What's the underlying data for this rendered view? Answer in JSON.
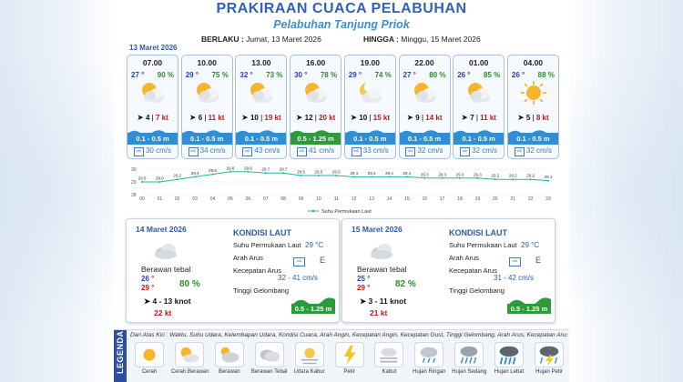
{
  "header": {
    "title": "PRAKIRAAN CUACA PELABUHAN",
    "subtitle": "Pelabuhan Tanjung Priok",
    "berlaku_label": "BERLAKU :",
    "berlaku_value": "Jumat, 13 Maret 2026",
    "hingga_label": "HINGGA :",
    "hingga_value": "Minggu, 15 Maret 2026"
  },
  "top_date": "13 Maret 2026",
  "forecasts": [
    {
      "time": "07.00",
      "temp": "27 °",
      "hum": "90 %",
      "icon": "cloudy-sun-icon",
      "wind_speed": "4",
      "gust": "7 kt",
      "wave": "0.1 - 0.5 m",
      "current": "30 cm/s",
      "wave_high": false
    },
    {
      "time": "10.00",
      "temp": "29 °",
      "hum": "75 %",
      "icon": "cloudy-sun-icon",
      "wind_speed": "6",
      "gust": "11 kt",
      "wave": "0.1 - 0.5 m",
      "current": "34 cm/s",
      "wave_high": false
    },
    {
      "time": "13.00",
      "temp": "32 °",
      "hum": "73 %",
      "icon": "cloudy-sun-icon",
      "wind_speed": "10",
      "gust": "19 kt",
      "wave": "0.1 - 0.5 m",
      "current": "43 cm/s",
      "wave_high": false
    },
    {
      "time": "16.00",
      "temp": "30 °",
      "hum": "78 %",
      "icon": "cloudy-sun-icon",
      "wind_speed": "12",
      "gust": "20 kt",
      "wave": "0.5 - 1.25 m",
      "current": "41 cm/s",
      "wave_high": true
    },
    {
      "time": "19.00",
      "temp": "29 °",
      "hum": "74 %",
      "icon": "cloudy-moon-icon",
      "wind_speed": "10",
      "gust": "15 kt",
      "wave": "0.1 - 0.5 m",
      "current": "33 cm/s",
      "wave_high": false
    },
    {
      "time": "22.00",
      "temp": "27 °",
      "hum": "80 %",
      "icon": "cloudy-sun-icon",
      "wind_speed": "9",
      "gust": "14 kt",
      "wave": "0.1 - 0.5 m",
      "current": "32 cm/s",
      "wave_high": false
    },
    {
      "time": "01.00",
      "temp": "26 °",
      "hum": "85 %",
      "icon": "cloudy-sun-icon",
      "wind_speed": "7",
      "gust": "11 kt",
      "wave": "0.1 - 0.5 m",
      "current": "32 cm/s",
      "wave_high": false
    },
    {
      "time": "04.00",
      "temp": "26 °",
      "hum": "88 %",
      "icon": "sun-icon",
      "wind_speed": "5",
      "gust": "8 kt",
      "wave": "0.1 - 0.5 m",
      "current": "32 cm/s",
      "wave_high": false
    }
  ],
  "chart_data": {
    "type": "line",
    "x": [
      "00",
      "01",
      "02",
      "03",
      "04",
      "05",
      "06",
      "07",
      "08",
      "09",
      "10",
      "11",
      "12",
      "13",
      "14",
      "15",
      "16",
      "17",
      "18",
      "19",
      "20",
      "21",
      "22",
      "23"
    ],
    "values": [
      29.0,
      29.0,
      29.2,
      29.4,
      29.6,
      29.8,
      29.8,
      29.7,
      29.7,
      29.5,
      29.5,
      29.5,
      29.4,
      29.4,
      29.4,
      29.4,
      29.3,
      29.3,
      29.3,
      29.3,
      29.2,
      29.2,
      29.2,
      29.1
    ],
    "ylim": [
      28,
      30
    ],
    "yticks": [
      "30",
      "29",
      "28"
    ],
    "series_name": "Suhu Permukaan Laut",
    "color": "#1fb5a8"
  },
  "days": [
    {
      "date": "14 Maret 2026",
      "kondisi_title": "KONDISI LAUT",
      "cond": "Berawan tebal",
      "temp_min": "26 °",
      "temp_max": "29 °",
      "hum": "80 %",
      "wind": "4 - 13 knot",
      "gust": "22 kt",
      "sst_label": "Suhu Permukaan Laut",
      "sst_value": "29 °C",
      "arus_label": "Arah Arus",
      "arus_value": "E",
      "kec_label": "Kecepatan Arus",
      "kec_value": "32 - 41 cm/s",
      "gel_label": "Tinggi Gelombang",
      "gel_value": "0.5 - 1.25 m"
    },
    {
      "date": "15 Maret 2026",
      "kondisi_title": "KONDISI LAUT",
      "cond": "Berawan tebal",
      "temp_min": "25 °",
      "temp_max": "29 °",
      "hum": "82 %",
      "wind": "3 - 11 knot",
      "gust": "21 kt",
      "sst_label": "Suhu Permukaan Laut",
      "sst_value": "29 °C",
      "arus_label": "Arah Arus",
      "arus_value": "E",
      "kec_label": "Kecepatan Arus",
      "kec_value": "31 - 42 cm/s",
      "gel_label": "Tinggi Gelombang",
      "gel_value": "0.5 - 1.25 m"
    }
  ],
  "legend": {
    "title": "LEGENDA",
    "desc": "Dari Atas Kiri : Waktu, Suhu Udara, Kelembapan Udara, Kondisi Cuaca, Arah Angin, Kecepatan Angin, Kecepatan Gust, Tinggi Gelombang, Arah Arus, Kecepatan Arus",
    "items": [
      {
        "name": "Cerah",
        "icon": "sun-icon"
      },
      {
        "name": "Cerah Berawan",
        "icon": "sun-cloud-icon"
      },
      {
        "name": "Berawan",
        "icon": "cloud-icon"
      },
      {
        "name": "Berawan Tebal",
        "icon": "thick-cloud-icon"
      },
      {
        "name": "Udara Kabur",
        "icon": "haze-icon"
      },
      {
        "name": "Petir",
        "icon": "lightning-icon"
      },
      {
        "name": "Kabut",
        "icon": "fog-icon"
      },
      {
        "name": "Hujan Ringan",
        "icon": "light-rain-icon"
      },
      {
        "name": "Hujan Sedang",
        "icon": "moderate-rain-icon"
      },
      {
        "name": "Hujan Lebat",
        "icon": "heavy-rain-icon"
      },
      {
        "name": "Hujan Petir",
        "icon": "thunderstorm-icon"
      }
    ]
  }
}
